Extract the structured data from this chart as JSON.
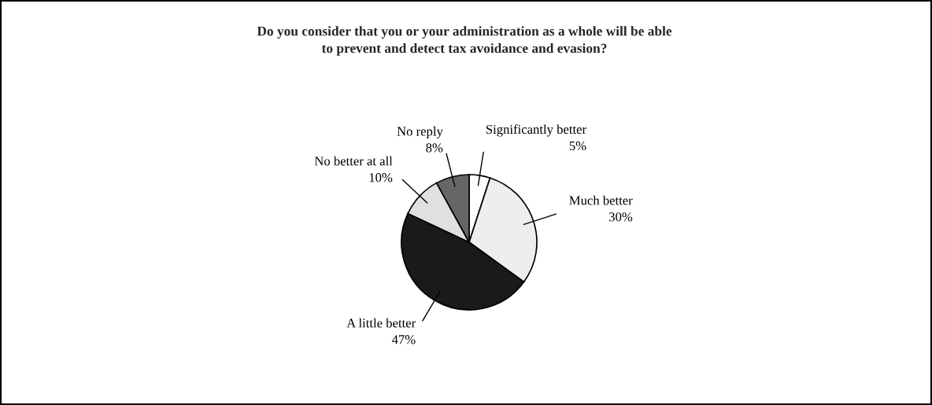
{
  "chart_data": {
    "type": "pie",
    "title": "Do you consider that you or your administration as a whole will be able to prevent and detect tax avoidance and evasion?",
    "categories": [
      "Significantly better",
      "Much better",
      "A little better",
      "No better at all",
      "No reply"
    ],
    "values": [
      5,
      30,
      47,
      10,
      8
    ],
    "value_labels": [
      "5%",
      "30%",
      "47%",
      "10%",
      "8%"
    ],
    "colors": [
      "#ffffff",
      "#eeeeee",
      "#1a1a1a",
      "#e0e0e0",
      "#666666"
    ],
    "legend": false
  }
}
